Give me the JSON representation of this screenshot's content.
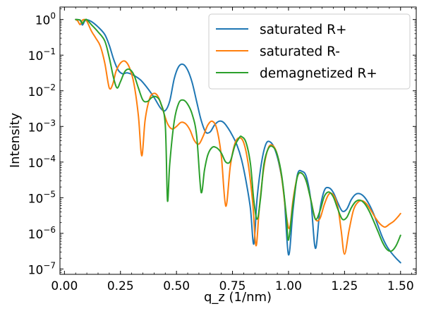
{
  "chart_data": {
    "type": "line",
    "title": "",
    "xlabel": "q_z (1/nm)",
    "ylabel": "Intensity",
    "xlim": [
      -0.02,
      1.57
    ],
    "ylim_log10": [
      -7.15,
      0.35
    ],
    "yscale": "log",
    "grid": false,
    "legend_position": "top-right",
    "x_ticks": [
      0.0,
      0.25,
      0.5,
      0.75,
      1.0,
      1.25,
      1.5
    ],
    "x_tick_labels": [
      "0.00",
      "0.25",
      "0.50",
      "0.75",
      "1.00",
      "1.25",
      "1.50"
    ],
    "y_ticks_exponent": [
      0,
      -1,
      -2,
      -3,
      -4,
      -5,
      -6,
      -7
    ],
    "y_tick_labels": [
      {
        "base": "10",
        "exp": "0"
      },
      {
        "base": "10",
        "exp": "−1"
      },
      {
        "base": "10",
        "exp": "−2"
      },
      {
        "base": "10",
        "exp": "−3"
      },
      {
        "base": "10",
        "exp": "−4"
      },
      {
        "base": "10",
        "exp": "−5"
      },
      {
        "base": "10",
        "exp": "−6"
      },
      {
        "base": "10",
        "exp": "−7"
      }
    ],
    "series": [
      {
        "name": "saturated R+",
        "color": "#1f77b4",
        "points": [
          [
            0.05,
            1.0
          ],
          [
            0.07,
            0.95
          ],
          [
            0.08,
            0.7
          ],
          [
            0.09,
            0.9
          ],
          [
            0.1,
            0.98
          ],
          [
            0.12,
            0.88
          ],
          [
            0.15,
            0.62
          ],
          [
            0.18,
            0.38
          ],
          [
            0.2,
            0.19
          ],
          [
            0.22,
            0.075
          ],
          [
            0.24,
            0.038
          ],
          [
            0.26,
            0.03
          ],
          [
            0.28,
            0.032
          ],
          [
            0.31,
            0.027
          ],
          [
            0.34,
            0.02
          ],
          [
            0.37,
            0.012
          ],
          [
            0.4,
            0.0065
          ],
          [
            0.43,
            0.0032
          ],
          [
            0.45,
            0.0028
          ],
          [
            0.47,
            0.0052
          ],
          [
            0.49,
            0.022
          ],
          [
            0.51,
            0.048
          ],
          [
            0.53,
            0.055
          ],
          [
            0.55,
            0.038
          ],
          [
            0.57,
            0.017
          ],
          [
            0.59,
            0.005
          ],
          [
            0.61,
            0.0015
          ],
          [
            0.63,
            0.0007
          ],
          [
            0.65,
            0.0007
          ],
          [
            0.67,
            0.0011
          ],
          [
            0.69,
            0.0014
          ],
          [
            0.71,
            0.0013
          ],
          [
            0.73,
            0.0009
          ],
          [
            0.75,
            0.00055
          ],
          [
            0.77,
            0.0003
          ],
          [
            0.79,
            0.00012
          ],
          [
            0.81,
            3e-05
          ],
          [
            0.83,
            5e-06
          ],
          [
            0.845,
            5e-07
          ],
          [
            0.86,
            1e-05
          ],
          [
            0.88,
            0.0001
          ],
          [
            0.9,
            0.00033
          ],
          [
            0.92,
            0.00036
          ],
          [
            0.94,
            0.00022
          ],
          [
            0.96,
            7.5e-05
          ],
          [
            0.98,
            1.2e-05
          ],
          [
            1.0,
            2.5e-07
          ],
          [
            1.02,
            4.5e-06
          ],
          [
            1.04,
            4.5e-05
          ],
          [
            1.06,
            5.5e-05
          ],
          [
            1.08,
            3.8e-05
          ],
          [
            1.1,
            8e-06
          ],
          [
            1.12,
            3.8e-07
          ],
          [
            1.14,
            4.5e-06
          ],
          [
            1.16,
            1.6e-05
          ],
          [
            1.18,
            1.9e-05
          ],
          [
            1.2,
            1.4e-05
          ],
          [
            1.22,
            7.2e-06
          ],
          [
            1.24,
            4.2e-06
          ],
          [
            1.26,
            4.8e-06
          ],
          [
            1.28,
            8.8e-06
          ],
          [
            1.3,
            1.25e-05
          ],
          [
            1.32,
            1.28e-05
          ],
          [
            1.34,
            1.02e-05
          ],
          [
            1.36,
            6.5e-06
          ],
          [
            1.38,
            3.5e-06
          ],
          [
            1.4,
            1.6e-06
          ],
          [
            1.42,
            7.5e-07
          ],
          [
            1.44,
            4.2e-07
          ],
          [
            1.46,
            2.8e-07
          ],
          [
            1.48,
            2e-07
          ],
          [
            1.5,
            1.5e-07
          ]
        ]
      },
      {
        "name": "saturated R-",
        "color": "#ff7f0e",
        "points": [
          [
            0.05,
            1.0
          ],
          [
            0.06,
            0.9
          ],
          [
            0.07,
            0.72
          ],
          [
            0.08,
            0.95
          ],
          [
            0.09,
            1.0
          ],
          [
            0.1,
            0.9
          ],
          [
            0.12,
            0.48
          ],
          [
            0.14,
            0.3
          ],
          [
            0.16,
            0.18
          ],
          [
            0.18,
            0.06
          ],
          [
            0.2,
            0.012
          ],
          [
            0.215,
            0.015
          ],
          [
            0.23,
            0.035
          ],
          [
            0.25,
            0.06
          ],
          [
            0.27,
            0.068
          ],
          [
            0.29,
            0.045
          ],
          [
            0.31,
            0.016
          ],
          [
            0.33,
            0.002
          ],
          [
            0.345,
            0.00015
          ],
          [
            0.36,
            0.0015
          ],
          [
            0.38,
            0.006
          ],
          [
            0.4,
            0.0085
          ],
          [
            0.42,
            0.0065
          ],
          [
            0.44,
            0.0028
          ],
          [
            0.46,
            0.0012
          ],
          [
            0.48,
            0.00085
          ],
          [
            0.5,
            0.001
          ],
          [
            0.52,
            0.0013
          ],
          [
            0.54,
            0.0012
          ],
          [
            0.56,
            0.0008
          ],
          [
            0.58,
            0.0004
          ],
          [
            0.6,
            0.00032
          ],
          [
            0.62,
            0.00055
          ],
          [
            0.64,
            0.0011
          ],
          [
            0.66,
            0.0014
          ],
          [
            0.68,
            0.00085
          ],
          [
            0.7,
            0.00015
          ],
          [
            0.72,
            5.8e-06
          ],
          [
            0.74,
            7.5e-05
          ],
          [
            0.76,
            0.00032
          ],
          [
            0.78,
            0.00048
          ],
          [
            0.8,
            0.00035
          ],
          [
            0.82,
            9e-05
          ],
          [
            0.84,
            7.5e-06
          ],
          [
            0.855,
            4.5e-07
          ],
          [
            0.87,
            5.5e-06
          ],
          [
            0.89,
            7e-05
          ],
          [
            0.91,
            0.00025
          ],
          [
            0.93,
            0.00029
          ],
          [
            0.95,
            0.00016
          ],
          [
            0.97,
            3.5e-05
          ],
          [
            0.99,
            3.2e-06
          ],
          [
            1.005,
            1.4e-06
          ],
          [
            1.02,
            8.5e-06
          ],
          [
            1.04,
            4e-05
          ],
          [
            1.06,
            4.8e-05
          ],
          [
            1.08,
            2.8e-05
          ],
          [
            1.1,
            8.5e-06
          ],
          [
            1.12,
            2.5e-06
          ],
          [
            1.14,
            2.6e-06
          ],
          [
            1.16,
            6.5e-06
          ],
          [
            1.18,
            1.25e-05
          ],
          [
            1.2,
            1.2e-05
          ],
          [
            1.22,
            5.5e-06
          ],
          [
            1.235,
            1.2e-06
          ],
          [
            1.25,
            2.6e-07
          ],
          [
            1.27,
            1.2e-06
          ],
          [
            1.29,
            4.5e-06
          ],
          [
            1.31,
            7.5e-06
          ],
          [
            1.33,
            8.2e-06
          ],
          [
            1.35,
            6.5e-06
          ],
          [
            1.37,
            4.2e-06
          ],
          [
            1.39,
            2.6e-06
          ],
          [
            1.41,
            1.8e-06
          ],
          [
            1.43,
            1.5e-06
          ],
          [
            1.45,
            1.8e-06
          ],
          [
            1.47,
            2.2e-06
          ],
          [
            1.49,
            3e-06
          ],
          [
            1.5,
            3.6e-06
          ]
        ]
      },
      {
        "name": "demagnetized R+",
        "color": "#2ca02c",
        "points": [
          [
            0.05,
            1.0
          ],
          [
            0.07,
            0.97
          ],
          [
            0.08,
            0.78
          ],
          [
            0.09,
            0.95
          ],
          [
            0.1,
            0.99
          ],
          [
            0.12,
            0.72
          ],
          [
            0.15,
            0.45
          ],
          [
            0.18,
            0.25
          ],
          [
            0.2,
            0.085
          ],
          [
            0.22,
            0.022
          ],
          [
            0.235,
            0.012
          ],
          [
            0.25,
            0.018
          ],
          [
            0.27,
            0.035
          ],
          [
            0.29,
            0.04
          ],
          [
            0.31,
            0.028
          ],
          [
            0.33,
            0.012
          ],
          [
            0.35,
            0.0055
          ],
          [
            0.37,
            0.005
          ],
          [
            0.39,
            0.0065
          ],
          [
            0.41,
            0.0068
          ],
          [
            0.43,
            0.0045
          ],
          [
            0.45,
            0.0011
          ],
          [
            0.46,
            8e-06
          ],
          [
            0.47,
            9e-05
          ],
          [
            0.49,
            0.0014
          ],
          [
            0.51,
            0.0045
          ],
          [
            0.53,
            0.0055
          ],
          [
            0.55,
            0.0042
          ],
          [
            0.57,
            0.0022
          ],
          [
            0.59,
            0.00055
          ],
          [
            0.61,
            1.4e-05
          ],
          [
            0.625,
            6e-05
          ],
          [
            0.64,
            0.00016
          ],
          [
            0.66,
            0.00026
          ],
          [
            0.68,
            0.00025
          ],
          [
            0.7,
            0.00018
          ],
          [
            0.72,
            0.0001
          ],
          [
            0.74,
            0.000105
          ],
          [
            0.76,
            0.00028
          ],
          [
            0.78,
            0.00048
          ],
          [
            0.79,
            0.00052
          ],
          [
            0.81,
            0.00036
          ],
          [
            0.83,
            9e-05
          ],
          [
            0.845,
            8.5e-06
          ],
          [
            0.86,
            2.5e-06
          ],
          [
            0.875,
            9.5e-06
          ],
          [
            0.89,
            8.5e-05
          ],
          [
            0.91,
            0.00024
          ],
          [
            0.93,
            0.00027
          ],
          [
            0.95,
            0.00016
          ],
          [
            0.97,
            4e-05
          ],
          [
            0.99,
            3.2e-06
          ],
          [
            1.0,
            6.5e-07
          ],
          [
            1.02,
            6.5e-06
          ],
          [
            1.04,
            4e-05
          ],
          [
            1.06,
            4.8e-05
          ],
          [
            1.08,
            2.8e-05
          ],
          [
            1.1,
            8.5e-06
          ],
          [
            1.12,
            2.5e-06
          ],
          [
            1.14,
            4.2e-06
          ],
          [
            1.16,
            1.1e-05
          ],
          [
            1.18,
            1.45e-05
          ],
          [
            1.2,
            1.05e-05
          ],
          [
            1.22,
            4.8e-06
          ],
          [
            1.24,
            2.5e-06
          ],
          [
            1.26,
            2.8e-06
          ],
          [
            1.28,
            5.2e-06
          ],
          [
            1.3,
            7.8e-06
          ],
          [
            1.32,
            8.5e-06
          ],
          [
            1.34,
            6.8e-06
          ],
          [
            1.36,
            4.2e-06
          ],
          [
            1.38,
            2.2e-06
          ],
          [
            1.4,
            1.1e-06
          ],
          [
            1.42,
            5.5e-07
          ],
          [
            1.44,
            3.5e-07
          ],
          [
            1.46,
            3.2e-07
          ],
          [
            1.48,
            4.5e-07
          ],
          [
            1.5,
            8.8e-07
          ]
        ]
      }
    ]
  }
}
